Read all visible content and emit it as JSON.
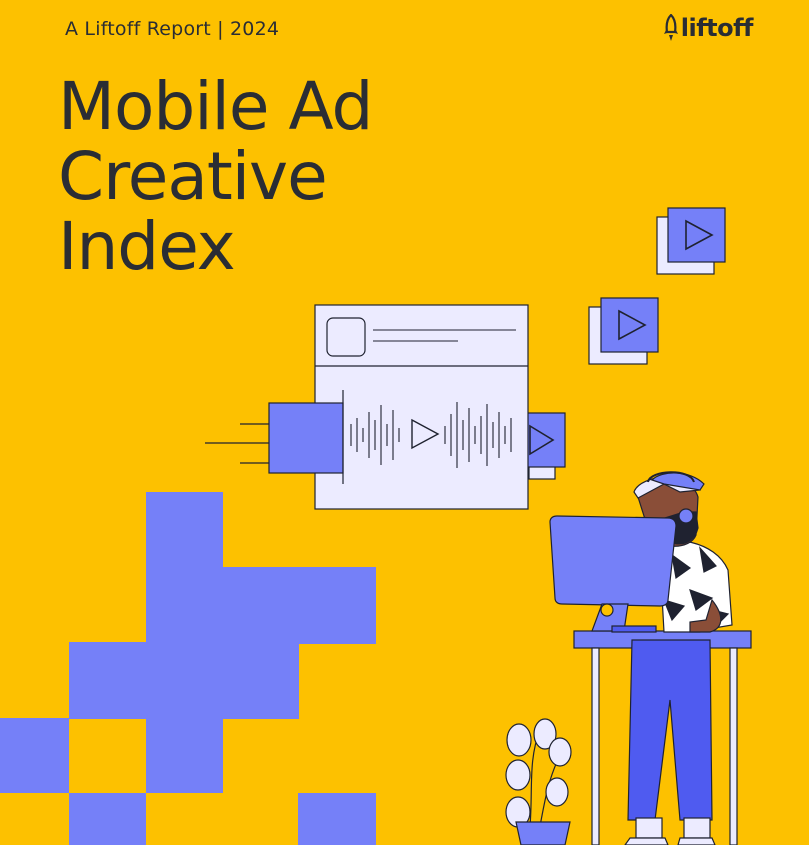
{
  "header": {
    "report_label": "A Liftoff Report  |  2024",
    "brand_name": "liftoff"
  },
  "cover": {
    "title_lines": [
      "Mobile Ad",
      "Creative",
      "Index"
    ]
  },
  "colors": {
    "background": "#FDC100",
    "text": "#2A2D34",
    "accent_blue": "#7580F8",
    "panel": "#ECEBFF",
    "outline": "#1F2230"
  },
  "icons": [
    "rocket-icon",
    "play-icon",
    "soundwave-icon",
    "monitor-icon",
    "plant-icon"
  ]
}
